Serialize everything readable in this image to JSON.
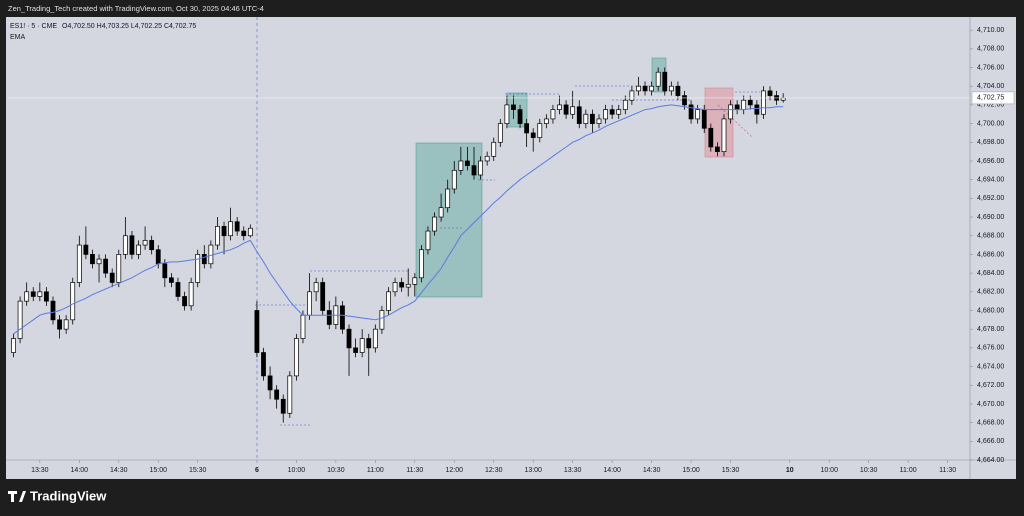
{
  "header": {
    "credit": "Zen_Trading_Tech created with TradingView.com, Oct 30, 2025 04:46 UTC-4",
    "symbol": "ES1! · 5 · CME",
    "ohlc": "O4,702.50 H4,703.25 L4,702.25 C4,702.75",
    "indicator": "EMA"
  },
  "footer": {
    "brand": "TradingView"
  },
  "chart_data": {
    "type": "candlestick",
    "up_color": "#ffffff",
    "down_color": "#000000",
    "ema_color": "#5b7be0",
    "candles": [
      [
        4675.5,
        4677.5,
        4675,
        4677
      ],
      [
        4677,
        4681.5,
        4676.5,
        4681
      ],
      [
        4681,
        4683,
        4680.5,
        4682
      ],
      [
        4682,
        4682.5,
        4681,
        4681.5
      ],
      [
        4681.5,
        4683,
        4681,
        4682
      ],
      [
        4682,
        4682.5,
        4680.5,
        4681
      ],
      [
        4681,
        4681.5,
        4678.5,
        4679
      ],
      [
        4679,
        4679.5,
        4677,
        4678
      ],
      [
        4678,
        4679.5,
        4677.5,
        4679
      ],
      [
        4679,
        4683.5,
        4678.5,
        4683
      ],
      [
        4683,
        4688,
        4682.5,
        4687
      ],
      [
        4687,
        4689,
        4685.5,
        4686
      ],
      [
        4686,
        4686.5,
        4684.5,
        4685
      ],
      [
        4685,
        4686,
        4683,
        4685.5
      ],
      [
        4685.5,
        4686,
        4683.5,
        4684
      ],
      [
        4684,
        4684.5,
        4682.5,
        4683
      ],
      [
        4683,
        4686.5,
        4682.5,
        4686
      ],
      [
        4686,
        4690,
        4685.5,
        4688
      ],
      [
        4688,
        4688.5,
        4685.5,
        4686
      ],
      [
        4686,
        4687.5,
        4685.5,
        4687
      ],
      [
        4687,
        4689,
        4686.5,
        4687.5
      ],
      [
        4687.5,
        4688,
        4686,
        4686.5
      ],
      [
        4686.5,
        4687,
        4684.5,
        4685
      ],
      [
        4685,
        4685.5,
        4682.5,
        4683.5
      ],
      [
        4683.5,
        4684,
        4682.5,
        4683
      ],
      [
        4683,
        4683.5,
        4681,
        4681.5
      ],
      [
        4681.5,
        4682,
        4680,
        4680.5
      ],
      [
        4680.5,
        4683.5,
        4680,
        4683
      ],
      [
        4683,
        4686.5,
        4682.5,
        4686
      ],
      [
        4686,
        4687,
        4684.5,
        4685
      ],
      [
        4685,
        4687.5,
        4684.5,
        4687
      ],
      [
        4687,
        4690,
        4686.5,
        4689
      ],
      [
        4689,
        4689.5,
        4686,
        4688
      ],
      [
        4688,
        4691,
        4687.5,
        4689.5
      ],
      [
        4689.5,
        4690,
        4688,
        4688.5
      ],
      [
        4688.5,
        4689,
        4687.5,
        4688
      ],
      [
        4688,
        4689.2,
        4687.8,
        4688.8
      ],
      [
        4680,
        4681,
        4675,
        4675.5
      ],
      [
        4675.5,
        4676,
        4672.5,
        4673
      ],
      [
        4673,
        4674,
        4670.5,
        4671.5
      ],
      [
        4671.5,
        4672,
        4669.5,
        4670.5
      ],
      [
        4670.5,
        4671,
        4668,
        4669
      ],
      [
        4669,
        4673.5,
        4668.5,
        4673
      ],
      [
        4673,
        4677.5,
        4672.5,
        4677
      ],
      [
        4677,
        4680,
        4676.5,
        4679.5
      ],
      [
        4679.5,
        4684,
        4679,
        4682
      ],
      [
        4682,
        4683.5,
        4681,
        4683
      ],
      [
        4683,
        4683.5,
        4679.5,
        4680
      ],
      [
        4680,
        4681,
        4678,
        4678.5
      ],
      [
        4678.5,
        4681.5,
        4678,
        4680.5
      ],
      [
        4680.5,
        4681,
        4677.5,
        4678
      ],
      [
        4678,
        4678.5,
        4673,
        4676
      ],
      [
        4676,
        4677,
        4675,
        4675.5
      ],
      [
        4675.5,
        4678,
        4675,
        4677
      ],
      [
        4677,
        4677.5,
        4673,
        4676
      ],
      [
        4676,
        4678.5,
        4675.5,
        4678
      ],
      [
        4678,
        4680.5,
        4677.5,
        4680
      ],
      [
        4680,
        4682.5,
        4679.5,
        4682
      ],
      [
        4682,
        4683.5,
        4681.5,
        4683
      ],
      [
        4683,
        4683.5,
        4682,
        4682.5
      ],
      [
        4682.5,
        4684.5,
        4681.5,
        4682.8
      ],
      [
        4682.8,
        4684,
        4681.5,
        4683.5
      ],
      [
        4683.5,
        4687,
        4683,
        4686.5
      ],
      [
        4686.5,
        4689,
        4686,
        4688.5
      ],
      [
        4688.5,
        4690.5,
        4688,
        4690
      ],
      [
        4690,
        4692.5,
        4689.5,
        4691
      ],
      [
        4691,
        4694,
        4690.5,
        4693
      ],
      [
        4693,
        4696,
        4692.5,
        4695
      ],
      [
        4695,
        4697.5,
        4694.5,
        4696
      ],
      [
        4696,
        4697.5,
        4695,
        4695.5
      ],
      [
        4695.5,
        4697.5,
        4694,
        4694.5
      ],
      [
        4694.5,
        4696.5,
        4694,
        4696
      ],
      [
        4696,
        4697,
        4695.5,
        4696.5
      ],
      [
        4696.5,
        4698.5,
        4696,
        4698
      ],
      [
        4698,
        4700.5,
        4697.5,
        4700
      ],
      [
        4700,
        4703,
        4699.5,
        4702
      ],
      [
        4702,
        4703,
        4700.5,
        4701.5
      ],
      [
        4701.5,
        4702,
        4699.5,
        4700
      ],
      [
        4700,
        4700.5,
        4697.5,
        4699
      ],
      [
        4699,
        4699.5,
        4697,
        4698.5
      ],
      [
        4698.5,
        4700.5,
        4698,
        4700
      ],
      [
        4700,
        4701,
        4699.5,
        4700.5
      ],
      [
        4700.5,
        4702,
        4700,
        4701.5
      ],
      [
        4701.5,
        4703,
        4701,
        4702
      ],
      [
        4702,
        4702.5,
        4700.5,
        4701
      ],
      [
        4701,
        4703.5,
        4700.5,
        4701.8
      ],
      [
        4701.8,
        4702.5,
        4699.5,
        4700
      ],
      [
        4700,
        4701.5,
        4699.5,
        4701
      ],
      [
        4701,
        4701.5,
        4699,
        4700
      ],
      [
        4700,
        4701,
        4699.5,
        4700.5
      ],
      [
        4700.5,
        4702,
        4700,
        4701.5
      ],
      [
        4701.5,
        4702,
        4700.5,
        4701
      ],
      [
        4701,
        4702,
        4700.5,
        4701.5
      ],
      [
        4701.5,
        4703,
        4701,
        4702.5
      ],
      [
        4702.5,
        4704,
        4702,
        4703.5
      ],
      [
        4703.5,
        4705,
        4703,
        4704
      ],
      [
        4704,
        4704.5,
        4703,
        4703.5
      ],
      [
        4703.5,
        4704.5,
        4703,
        4704
      ],
      [
        4704,
        4706,
        4703.5,
        4705.5
      ],
      [
        4705.5,
        4706,
        4703,
        4703.5
      ],
      [
        4703.5,
        4704.5,
        4703,
        4704
      ],
      [
        4704,
        4704.5,
        4702.5,
        4703
      ],
      [
        4703,
        4703.5,
        4701.5,
        4702
      ],
      [
        4702,
        4702.5,
        4700,
        4700.5
      ],
      [
        4700.5,
        4702,
        4700,
        4701.5
      ],
      [
        4701.5,
        4702,
        4699,
        4699.5
      ],
      [
        4699.5,
        4700,
        4697,
        4697.5
      ],
      [
        4697.5,
        4698,
        4696.5,
        4697
      ],
      [
        4697,
        4701,
        4696.5,
        4700.5
      ],
      [
        4700.5,
        4702.5,
        4700,
        4702
      ],
      [
        4702,
        4702.5,
        4701,
        4701.5
      ],
      [
        4701.5,
        4703,
        4701,
        4702.5
      ],
      [
        4702.5,
        4703,
        4701.5,
        4702
      ],
      [
        4702,
        4702.5,
        4700,
        4701
      ],
      [
        4701,
        4704,
        4700.5,
        4703.5
      ],
      [
        4703.5,
        4704,
        4702.5,
        4703
      ],
      [
        4703,
        4703.5,
        4702,
        4702.5
      ],
      [
        4702.5,
        4703.25,
        4702.25,
        4702.75
      ]
    ],
    "ema": [
      4677.5,
      4678,
      4678.5,
      4679,
      4679.5,
      4679.7,
      4679.8,
      4680,
      4680.3,
      4680.7,
      4681,
      4681.3,
      4681.7,
      4682,
      4682.3,
      4682.6,
      4682.9,
      4683.2,
      4683.5,
      4683.9,
      4684.3,
      4684.6,
      4685,
      4685.1,
      4685.2,
      4685.2,
      4685.3,
      4685.4,
      4685.5,
      4685.7,
      4685.9,
      4686.1,
      4686.3,
      4686.5,
      4686.8,
      4687.2,
      4687.5,
      4686.3,
      4685.2,
      4684,
      4683,
      4682,
      4681,
      4680.2,
      4679.5,
      4679.5,
      4679.5,
      4679.5,
      4679.5,
      4679.5,
      4679.5,
      4679.4,
      4679.3,
      4679.2,
      4679.1,
      4679,
      4679.2,
      4679.5,
      4679.9,
      4680.3,
      4680.6,
      4681,
      4681.9,
      4682.8,
      4683.6,
      4684.5,
      4685.7,
      4686.8,
      4688,
      4688.7,
      4689.4,
      4690.1,
      4690.8,
      4691.5,
      4692.1,
      4692.8,
      4693.4,
      4694,
      4694.5,
      4695,
      4695.5,
      4696,
      4696.5,
      4697,
      4697.5,
      4698,
      4698.3,
      4698.7,
      4699,
      4699.3,
      4699.7,
      4700,
      4700.3,
      4700.6,
      4700.9,
      4701.2,
      4701.5,
      4701.6,
      4701.8,
      4701.9,
      4702,
      4701.9,
      4701.8,
      4701.7,
      4701.6,
      4701.5,
      4701.5,
      4701.5,
      4701.5,
      4701.5,
      4701.5,
      4701.5,
      4701.6,
      4701.6,
      4701.7,
      4701.7,
      4701.8,
      4701.8
    ],
    "last_price_label": "4,702.75",
    "xlim": [
      -0.84,
      145.4
    ],
    "xticks": [
      {
        "value": 4,
        "label": "13:30"
      },
      {
        "value": 10,
        "label": "14:00"
      },
      {
        "value": 16,
        "label": "14:30"
      },
      {
        "value": 22,
        "label": "15:00"
      },
      {
        "value": 28,
        "label": "15:30"
      },
      {
        "value": 37,
        "label": "6"
      },
      {
        "value": 43,
        "label": "10:00"
      },
      {
        "value": 49,
        "label": "10:30"
      },
      {
        "value": 55,
        "label": "11:00"
      },
      {
        "value": 61,
        "label": "11:30"
      },
      {
        "value": 67,
        "label": "12:00"
      },
      {
        "value": 73,
        "label": "12:30"
      },
      {
        "value": 79,
        "label": "13:00"
      },
      {
        "value": 85,
        "label": "13:30"
      },
      {
        "value": 91,
        "label": "14:00"
      },
      {
        "value": 97,
        "label": "14:30"
      },
      {
        "value": 103,
        "label": "15:00"
      },
      {
        "value": 109,
        "label": "15:30"
      },
      {
        "value": 118,
        "label": "10"
      },
      {
        "value": 124,
        "label": "10:00"
      },
      {
        "value": 130,
        "label": "10:30"
      },
      {
        "value": 136,
        "label": "11:00"
      },
      {
        "value": 142,
        "label": "11:30"
      }
    ],
    "ylim": [
      4664,
      4711.3
    ],
    "yticks": [
      {
        "value": 4664,
        "label": "4,664.00"
      },
      {
        "value": 4666,
        "label": "4,666.00"
      },
      {
        "value": 4668,
        "label": "4,668.00"
      },
      {
        "value": 4670,
        "label": "4,670.00"
      },
      {
        "value": 4672,
        "label": "4,672.00"
      },
      {
        "value": 4674,
        "label": "4,674.00"
      },
      {
        "value": 4676,
        "label": "4,676.00"
      },
      {
        "value": 4678,
        "label": "4,678.00"
      },
      {
        "value": 4680,
        "label": "4,680.00"
      },
      {
        "value": 4682,
        "label": "4,682.00"
      },
      {
        "value": 4684,
        "label": "4,684.00"
      },
      {
        "value": 4686,
        "label": "4,686.00"
      },
      {
        "value": 4688,
        "label": "4,688.00"
      },
      {
        "value": 4690,
        "label": "4,690.00"
      },
      {
        "value": 4692,
        "label": "4,692.00"
      },
      {
        "value": 4694,
        "label": "4,694.00"
      },
      {
        "value": 4696,
        "label": "4,696.00"
      },
      {
        "value": 4698,
        "label": "4,698.00"
      },
      {
        "value": 4700,
        "label": "4,700.00"
      },
      {
        "value": 4702,
        "label": "4,702.00"
      },
      {
        "value": 4704,
        "label": "4,704.00"
      },
      {
        "value": 4706,
        "label": "4,706.00"
      },
      {
        "value": 4708,
        "label": "4,708.00"
      },
      {
        "value": 4710,
        "label": "4,710.00"
      }
    ]
  }
}
